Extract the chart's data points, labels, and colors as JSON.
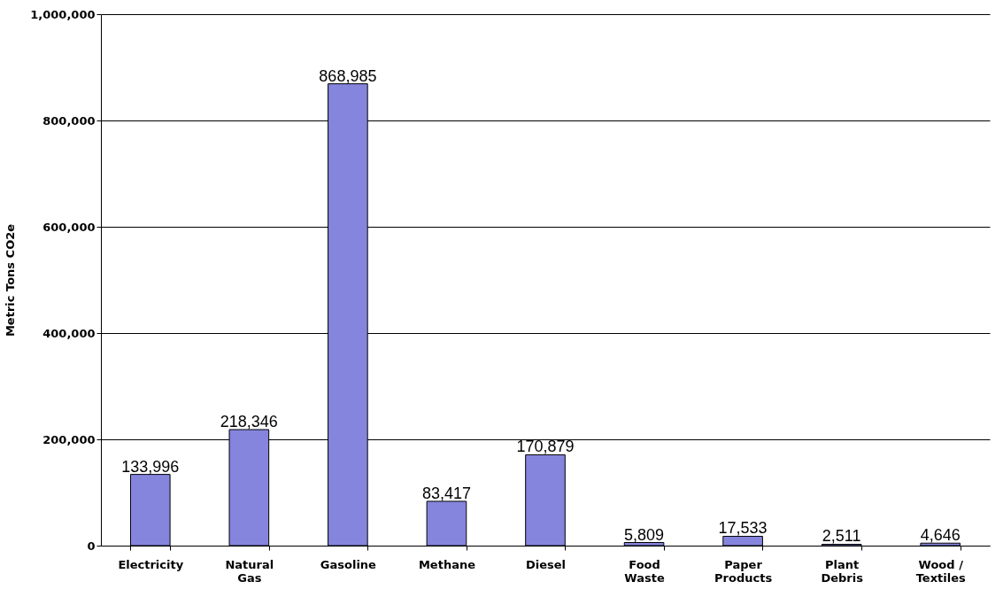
{
  "chart_data": {
    "type": "bar",
    "ylabel": "Metric Tons CO2e",
    "categories": [
      "Electricity",
      "Natural Gas",
      "Gasoline",
      "Methane",
      "Diesel",
      "Food Waste",
      "Paper Products",
      "Plant Debris",
      "Wood / Textiles"
    ],
    "values": [
      133996,
      218346,
      868985,
      83417,
      170879,
      5809,
      17533,
      2511,
      4646
    ],
    "value_labels": [
      "133,996",
      "218,346",
      "868,985",
      "83,417",
      "170,879",
      "5,809",
      "17,533",
      "2,511",
      "4,646"
    ],
    "color": "#8585dd",
    "ylim": [
      0,
      1000000
    ],
    "yticks": [
      {
        "value": 0,
        "label": "0"
      },
      {
        "value": 200000,
        "label": "200,000"
      },
      {
        "value": 400000,
        "label": "400,000"
      },
      {
        "value": 600000,
        "label": "600,000"
      },
      {
        "value": 800000,
        "label": "800,000"
      },
      {
        "value": 1000000,
        "label": "1,000,000"
      }
    ],
    "grid": "y"
  }
}
